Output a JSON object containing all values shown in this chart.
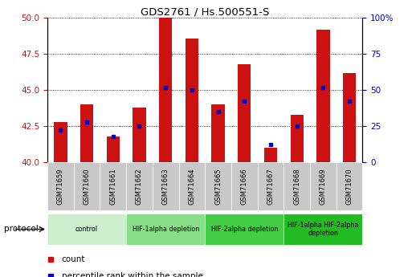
{
  "title": "GDS2761 / Hs.500551-S",
  "samples": [
    "GSM71659",
    "GSM71660",
    "GSM71661",
    "GSM71662",
    "GSM71663",
    "GSM71664",
    "GSM71665",
    "GSM71666",
    "GSM71667",
    "GSM71668",
    "GSM71669",
    "GSM71670"
  ],
  "count_values": [
    42.8,
    44.0,
    41.8,
    43.8,
    50.0,
    48.6,
    44.0,
    46.8,
    41.0,
    43.3,
    49.2,
    46.2
  ],
  "percentile_values": [
    22,
    28,
    18,
    25,
    52,
    50,
    35,
    42,
    12,
    25,
    52,
    42
  ],
  "ylim_left": [
    40,
    50
  ],
  "ylim_right": [
    0,
    100
  ],
  "yticks_left": [
    40,
    42.5,
    45,
    47.5,
    50
  ],
  "yticks_right": [
    0,
    25,
    50,
    75,
    100
  ],
  "bar_color": "#cc1111",
  "dot_color": "#0000cc",
  "xticklabel_bg": "#c8c8c8",
  "protocol_groups": [
    {
      "label": "control",
      "span": [
        0,
        3
      ],
      "color": "#cceecc"
    },
    {
      "label": "HIF-1alpha depletion",
      "span": [
        3,
        6
      ],
      "color": "#88dd88"
    },
    {
      "label": "HIF-2alpha depletion",
      "span": [
        6,
        9
      ],
      "color": "#44cc44"
    },
    {
      "label": "HIF-1alpha HIF-2alpha\ndepletion",
      "span": [
        9,
        12
      ],
      "color": "#22bb22"
    }
  ],
  "legend_items": [
    {
      "label": "count",
      "color": "#cc1111"
    },
    {
      "label": "percentile rank within the sample",
      "color": "#0000cc"
    }
  ]
}
